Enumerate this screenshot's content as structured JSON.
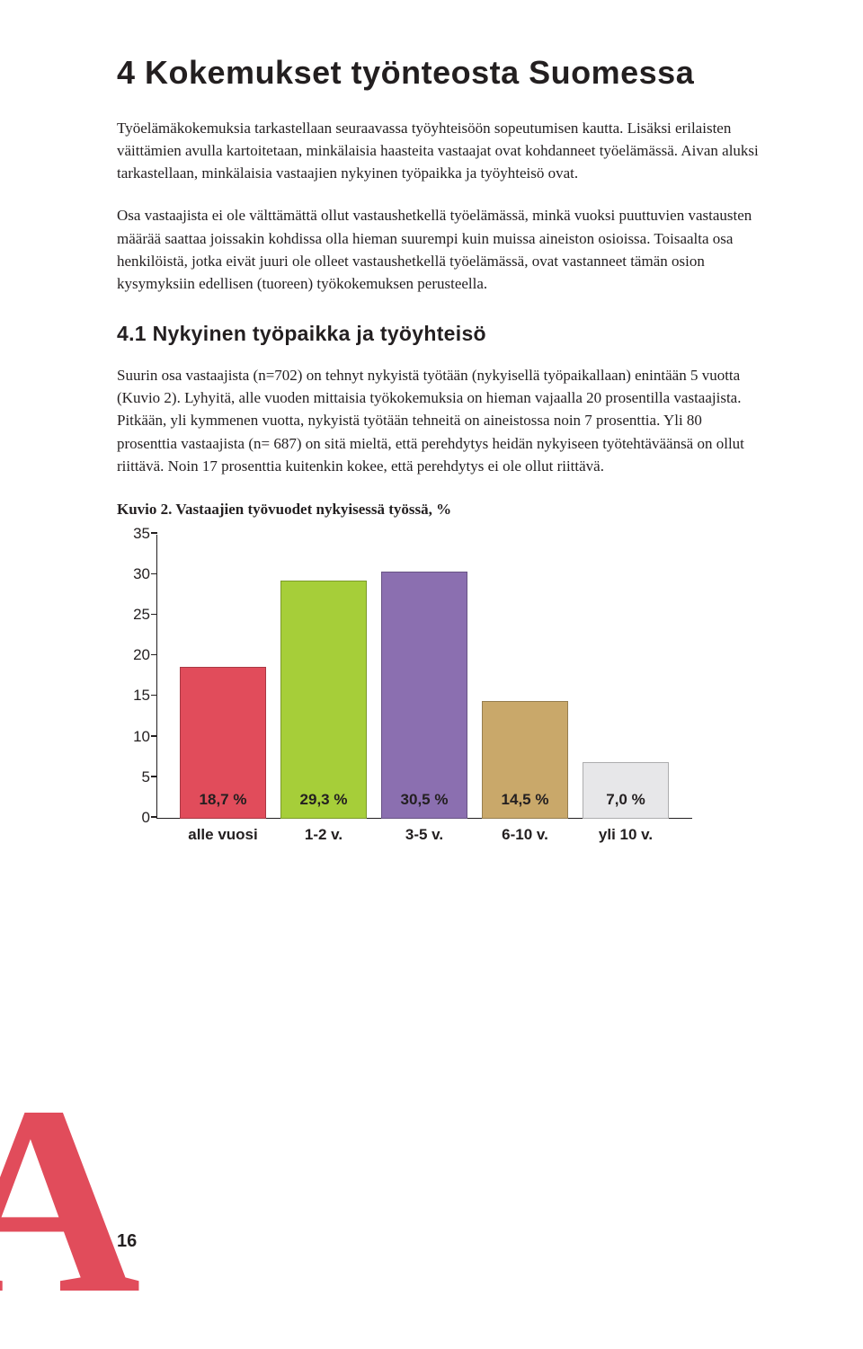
{
  "heading": "4 Kokemukset työnteosta Suomessa",
  "para1": "Työelämäkokemuksia tarkastellaan seuraavassa työyhteisöön sopeutumisen kautta. Lisäksi erilaisten väittämien avulla kartoitetaan, minkälaisia haasteita vastaajat ovat kohdanneet työelämässä. Aivan aluksi tarkastellaan, minkälaisia vastaajien nykyinen työpaikka ja työyhteisö ovat.",
  "para2": "Osa vastaajista ei ole välttämättä ollut vastaushetkellä työelämässä, minkä vuoksi puuttuvien vastausten määrää saattaa joissakin kohdissa olla hieman suurempi kuin muissa aineiston osioissa. Toisaalta osa henkilöistä, jotka eivät juuri ole olleet vastaushetkellä työelämässä, ovat vastanneet tämän osion kysymyksiin edellisen (tuoreen) työkokemuksen perusteella.",
  "subheading": "4.1 Nykyinen työpaikka ja työyhteisö",
  "para3": "Suurin osa vastaajista (n=702) on tehnyt nykyistä työtään (nykyisellä työpaikallaan) enintään 5 vuotta (Kuvio 2). Lyhyitä, alle vuoden mittaisia työkokemuksia on hieman vajaalla 20 prosentilla vastaajista. Pitkään, yli kymmenen vuotta, nykyistä työtään tehneitä on aineistossa noin 7 prosenttia. Yli 80 prosenttia vastaajista (n= 687) on sitä mieltä, että perehdytys heidän nykyiseen työtehtäväänsä on ollut riittävä. Noin 17 prosenttia kuitenkin kokee, että perehdytys ei ole ollut riittävä.",
  "chart_caption": "Kuvio 2. Vastaajien työvuodet nykyisessä työssä, %",
  "chart": {
    "type": "bar",
    "ylim": [
      0,
      35
    ],
    "ytick_step": 5,
    "yticks": [
      0,
      5,
      10,
      15,
      20,
      25,
      30,
      35
    ],
    "categories": [
      "alle vuosi",
      "1-2 v.",
      "3-5 v.",
      "6-10 v.",
      "yli 10 v."
    ],
    "values": [
      18.7,
      29.3,
      30.5,
      14.5,
      7.0
    ],
    "value_labels": [
      "18,7 %",
      "29,3 %",
      "30,5 %",
      "14,5 %",
      "7,0 %"
    ],
    "bar_colors": [
      "#e14c5b",
      "#a6ce39",
      "#8b6fb0",
      "#c9a86a",
      "#e7e7e9"
    ],
    "border_color": "#231f20",
    "background_color": "#ffffff",
    "label_fontsize": 17
  },
  "watermark_letter": "A",
  "watermark_color": "#e14c5b",
  "page_number": "16"
}
